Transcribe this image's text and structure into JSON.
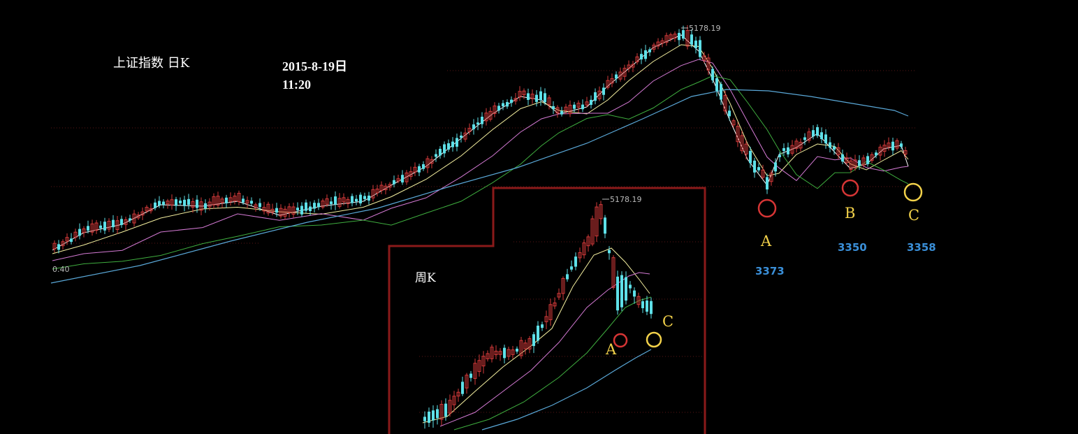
{
  "header": {
    "title": "上证指数 日K",
    "date": "2015-8-19日",
    "time": "11:20"
  },
  "inset": {
    "title": "周K"
  },
  "colors": {
    "up": "#d43a3a",
    "down": "#5ee0e8",
    "grid": "#5a1616",
    "frame": "#8a1a1a",
    "ma5": "#ffffff",
    "ma10": "#f5f0a0",
    "ma20": "#d47ad4",
    "ma30": "#3fae3f",
    "ma60": "#5aa8d8",
    "circle_red": "#d63535",
    "circle_yellow": "#f2d14a",
    "value_blue": "#3a8fd8"
  },
  "chart_data": [
    {
      "type": "candlestick",
      "name": "daily",
      "title": "上证指数 日K",
      "peak_label": "5178.19",
      "left_axis_label": "0.40",
      "annotations": [
        {
          "label": "A",
          "value": "3373",
          "color": "red"
        },
        {
          "label": "B",
          "value": "3350",
          "color": "red"
        },
        {
          "label": "C",
          "value": "3358",
          "color": "yellow"
        }
      ]
    },
    {
      "type": "candlestick",
      "name": "weekly",
      "title": "周K",
      "peak_label": "5178.19",
      "annotations": [
        {
          "label": "A",
          "color": "red"
        },
        {
          "label": "C",
          "color": "yellow"
        }
      ]
    }
  ]
}
